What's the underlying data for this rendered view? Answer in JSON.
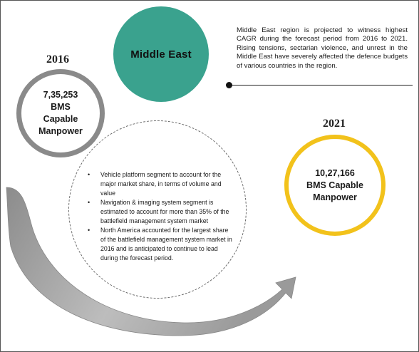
{
  "region": "Middle East",
  "description": "Middle East region is projected to witness highest CAGR during the forecast period from 2016 to 2021. Rising tensions, sectarian violence, and unrest in the Middle East have severely affected the defence budgets of various countries in the region.",
  "start": {
    "year": "2016",
    "lines": [
      "7,35,253",
      "BMS",
      "Capable",
      "Manpower"
    ]
  },
  "end": {
    "year": "2021",
    "lines": [
      "10,27,166",
      "BMS Capable",
      "Manpower"
    ]
  },
  "bullets": [
    "Vehicle platform segment to account for the major market share, in terms of volume and value",
    "Navigation & imaging system segment is estimated to account for more than 35% of the battlefield management system market",
    "North America accounted for the largest share of the battlefield management system market in 2016 and is anticipated to continue to lead during the forecast period."
  ],
  "colors": {
    "region_circle": "#3aa28e",
    "start_ring": "#8a8a8a",
    "end_ring": "#f2c21b",
    "arrow": "#9a9a9a"
  }
}
